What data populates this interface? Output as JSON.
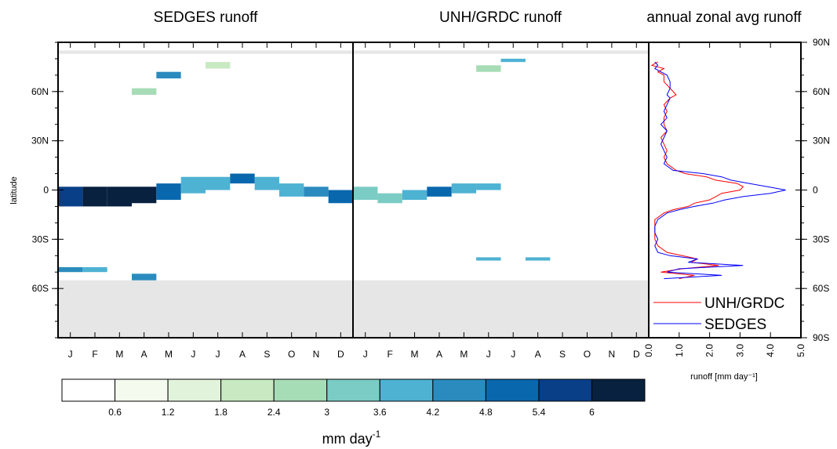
{
  "chart_data": [
    {
      "type": "heatmap",
      "title": "SEDGES runoff",
      "ylabel": "latitude",
      "x": [
        "J",
        "F",
        "M",
        "A",
        "M",
        "J",
        "J",
        "A",
        "S",
        "O",
        "N",
        "D"
      ],
      "y_ticks": [
        "60N",
        "30N",
        "0",
        "30S",
        "60S"
      ],
      "ylim": [
        -90,
        90
      ],
      "masked_latitudes": "south of 55S and 83N-85N",
      "cells": [
        {
          "month": 1,
          "lat_range": [
            -10,
            2
          ],
          "value": 5.8
        },
        {
          "month": 2,
          "lat_range": [
            -10,
            2
          ],
          "value": 6.6
        },
        {
          "month": 3,
          "lat_range": [
            -10,
            2
          ],
          "value": 6.1
        },
        {
          "month": 4,
          "lat_range": [
            -8,
            2
          ],
          "value": 6.4
        },
        {
          "month": 5,
          "lat_range": [
            -6,
            4
          ],
          "value": 4.8
        },
        {
          "month": 6,
          "lat_range": [
            -2,
            8
          ],
          "value": 4.0
        },
        {
          "month": 7,
          "lat_range": [
            0,
            8
          ],
          "value": 3.8
        },
        {
          "month": 8,
          "lat_range": [
            4,
            10
          ],
          "value": 4.9
        },
        {
          "month": 9,
          "lat_range": [
            0,
            8
          ],
          "value": 3.6
        },
        {
          "month": 10,
          "lat_range": [
            -4,
            4
          ],
          "value": 3.9
        },
        {
          "month": 11,
          "lat_range": [
            -4,
            2
          ],
          "value": 4.6
        },
        {
          "month": 12,
          "lat_range": [
            -8,
            0
          ],
          "value": 5.2
        },
        {
          "month": 1,
          "lat_range": [
            -50,
            -47
          ],
          "value": 4.2
        },
        {
          "month": 2,
          "lat_range": [
            -50,
            -47
          ],
          "value": 3.7
        },
        {
          "month": 4,
          "lat_range": [
            -55,
            -51
          ],
          "value": 4.4
        },
        {
          "month": 5,
          "lat_range": [
            68,
            72
          ],
          "value": 4.3
        },
        {
          "month": 4,
          "lat_range": [
            58,
            62
          ],
          "value": 2.5
        },
        {
          "month": 7,
          "lat_range": [
            74,
            78
          ],
          "value": 2.0
        }
      ]
    },
    {
      "type": "heatmap",
      "title": "UNH/GRDC runoff",
      "x": [
        "J",
        "F",
        "M",
        "A",
        "M",
        "J",
        "J",
        "A",
        "S",
        "O",
        "N",
        "D"
      ],
      "ylim": [
        -90,
        90
      ],
      "masked_latitudes": "south of 55S and 83N-85N",
      "cells": [
        {
          "month": 1,
          "lat_range": [
            -6,
            2
          ],
          "value": 3.4
        },
        {
          "month": 2,
          "lat_range": [
            -8,
            -2
          ],
          "value": 3.3
        },
        {
          "month": 3,
          "lat_range": [
            -6,
            0
          ],
          "value": 4.0
        },
        {
          "month": 4,
          "lat_range": [
            -4,
            2
          ],
          "value": 5.2
        },
        {
          "month": 5,
          "lat_range": [
            -2,
            4
          ],
          "value": 4.1
        },
        {
          "month": 6,
          "lat_range": [
            0,
            4
          ],
          "value": 3.7
        },
        {
          "month": 7,
          "lat_range": [
            78,
            80
          ],
          "value": 4.0
        },
        {
          "month": 6,
          "lat_range": [
            -43,
            -41
          ],
          "value": 3.9
        },
        {
          "month": 8,
          "lat_range": [
            -43,
            -41
          ],
          "value": 4.1
        },
        {
          "month": 6,
          "lat_range": [
            72,
            76
          ],
          "value": 2.4
        }
      ]
    },
    {
      "type": "line",
      "title": "annual zonal avg runoff",
      "xlabel": "runoff [mm day⁻¹]",
      "xlim": [
        0,
        5
      ],
      "x_ticks": [
        "0.0",
        "1.0",
        "2.0",
        "3.0",
        "4.0",
        "5.0"
      ],
      "ylim": [
        -90,
        90
      ],
      "y_ticks": [
        "90N",
        "60N",
        "30N",
        "0",
        "30S",
        "60S",
        "90S"
      ],
      "series": [
        {
          "name": "UNH/GRDC",
          "color": "#ff0000",
          "lat": [
            78,
            76,
            74,
            72,
            70,
            66,
            62,
            58,
            56,
            52,
            48,
            44,
            40,
            36,
            32,
            28,
            24,
            20,
            16,
            12,
            10,
            8,
            6,
            4,
            2,
            0,
            -2,
            -4,
            -6,
            -8,
            -10,
            -12,
            -14,
            -18,
            -22,
            -26,
            -30,
            -34,
            -38,
            -40,
            -42,
            -44,
            -46,
            -48,
            -50,
            -52,
            -54
          ],
          "values": [
            0.3,
            0.1,
            0.5,
            0.3,
            0.5,
            0.5,
            0.7,
            0.9,
            0.7,
            0.5,
            0.6,
            0.5,
            0.5,
            0.6,
            0.4,
            0.5,
            0.6,
            0.5,
            0.6,
            0.9,
            1.2,
            1.9,
            2.2,
            2.9,
            3.1,
            3.0,
            2.4,
            2.2,
            2.0,
            1.5,
            1.3,
            0.8,
            0.5,
            0.2,
            0.2,
            0.2,
            0.2,
            0.3,
            0.6,
            1.1,
            1.6,
            1.4,
            2.3,
            1.1,
            0.4,
            1.5,
            1.0
          ]
        },
        {
          "name": "SEDGES",
          "color": "#0000ff",
          "lat": [
            78,
            76,
            74,
            72,
            70,
            66,
            62,
            58,
            56,
            52,
            48,
            44,
            40,
            36,
            32,
            28,
            24,
            20,
            16,
            12,
            10,
            8,
            6,
            4,
            2,
            0,
            -2,
            -4,
            -6,
            -8,
            -10,
            -12,
            -14,
            -18,
            -22,
            -26,
            -30,
            -34,
            -38,
            -40,
            -42,
            -44,
            -46,
            -48,
            -50,
            -52,
            -54
          ],
          "values": [
            0.2,
            0.3,
            0.2,
            0.4,
            0.6,
            0.7,
            0.7,
            0.6,
            0.7,
            0.6,
            0.5,
            0.6,
            0.4,
            0.6,
            0.5,
            0.4,
            0.5,
            0.6,
            0.5,
            0.8,
            1.8,
            2.4,
            2.7,
            3.3,
            3.9,
            4.5,
            4.0,
            3.1,
            2.5,
            2.1,
            1.5,
            1.0,
            0.6,
            0.3,
            0.2,
            0.2,
            0.3,
            0.2,
            0.3,
            0.7,
            1.6,
            1.3,
            3.1,
            1.0,
            0.6,
            2.4,
            0.5
          ]
        }
      ],
      "legend": [
        "UNH/GRDC",
        "SEDGES"
      ],
      "legend_position": "bottom-right"
    }
  ],
  "colorbar": {
    "labels": [
      "0.6",
      "1.2",
      "1.8",
      "2.4",
      "3",
      "3.6",
      "4.2",
      "4.8",
      "5.4",
      "6"
    ],
    "colors": [
      "#ffffff",
      "#f4fbee",
      "#e2f3dc",
      "#c8e9c2",
      "#a6dcb6",
      "#7accc4",
      "#4eb2d3",
      "#2b8bbe",
      "#0967ad",
      "#083f87",
      "#08213f"
    ],
    "unit_base": "mm day",
    "unit_sup": "-1"
  },
  "mask_color": "#e6e6e6"
}
